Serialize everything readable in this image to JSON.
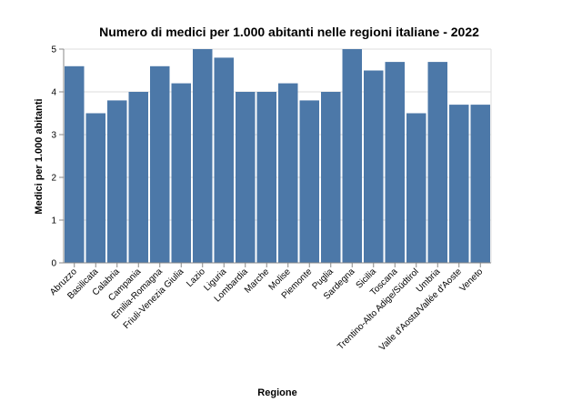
{
  "chart_data": {
    "type": "bar",
    "title": "Numero di medici per 1.000 abitanti nelle regioni italiane - 2022",
    "xlabel": "Regione",
    "ylabel": "Medici per 1.000 abitanti",
    "ylim": [
      0,
      5
    ],
    "yticks": [
      0,
      1,
      2,
      3,
      4,
      5
    ],
    "grid": true,
    "legend": "none",
    "color": "#4c78a8",
    "categories": [
      "Abruzzo",
      "Basilicata",
      "Calabria",
      "Campania",
      "Emilia-Romagna",
      "Friuli-Venezia Giulia",
      "Lazio",
      "Liguria",
      "Lombardia",
      "Marche",
      "Molise",
      "Piemonte",
      "Puglia",
      "Sardegna",
      "Sicilia",
      "Toscana",
      "Trentino-Alto Adige/Südtirol",
      "Umbria",
      "Valle d'Aosta/Vallée d'Aoste",
      "Veneto"
    ],
    "values": [
      4.6,
      3.5,
      3.8,
      4.0,
      4.6,
      4.2,
      5.0,
      4.8,
      4.0,
      4.0,
      4.2,
      3.8,
      4.0,
      5.0,
      4.5,
      4.7,
      3.5,
      4.7,
      3.7,
      3.7
    ]
  }
}
